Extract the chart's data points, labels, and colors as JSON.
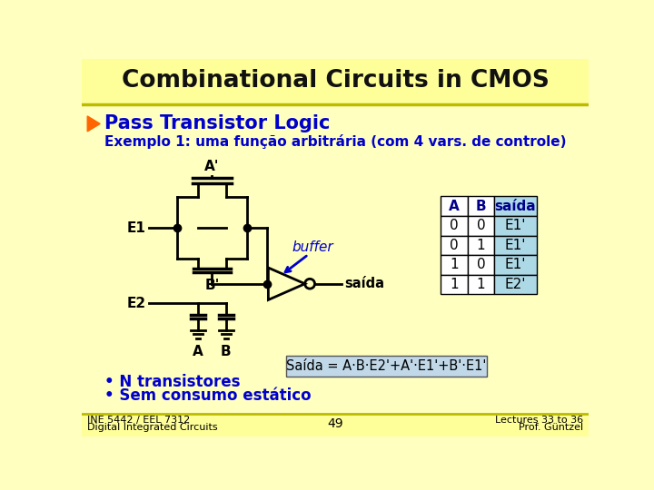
{
  "title": "Combinational Circuits in CMOS",
  "title_bg": "#FFFF99",
  "body_bg": "#FFFFC0",
  "section_title": "Pass Transistor Logic",
  "section_color": "#0000CC",
  "example_text": "Exemplo 1: uma função arbitrária (com 4 vars. de controle)",
  "example_color": "#0000CC",
  "bullet1": "N transistores",
  "bullet2": "Sem consumo estático",
  "bullet_color": "#0000CC",
  "footer_left1": "INE 5442 / EEL 7312",
  "footer_left2": "Digital Integrated Circuits",
  "footer_center": "49",
  "footer_right1": "Lectures 33 to 36",
  "footer_right2": "Prof. Güntzel",
  "footer_color": "#000000",
  "footer_bg": "#FFFF99",
  "table_header_bg": "#ADD8E6",
  "table_col_headers": [
    "A",
    "B",
    "saída"
  ],
  "table_header_text_color": [
    "#00008B",
    "#00008B",
    "#00008B"
  ],
  "table_rows": [
    [
      "0",
      "0",
      "E1'"
    ],
    [
      "0",
      "1",
      "E1'"
    ],
    [
      "1",
      "0",
      "E1'"
    ],
    [
      "1",
      "1",
      "E2'"
    ]
  ],
  "output_box_text": "Saída = A·B·E2'+A'·E1'+B'·E1'",
  "output_box_bg": "#C0D8E8",
  "buffer_label": "buffer",
  "saida_label": "saída",
  "circuit_color": "#000000",
  "arrow_color": "#0000CC",
  "bullet_triangle_color": "#FF6600"
}
